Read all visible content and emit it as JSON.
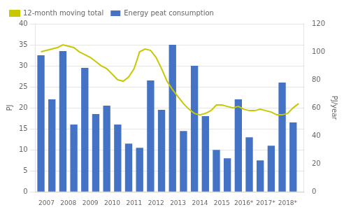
{
  "chart_data": {
    "type": "bar",
    "ylabel": "PJ",
    "y2label": "PJ/year",
    "xlim": [
      2006.5,
      2018.75
    ],
    "xticks": [
      2007,
      2008,
      2009,
      2010,
      2011,
      2012,
      2013,
      2014,
      2015,
      {
        "value": 2016,
        "label": "2016*"
      },
      {
        "value": 2017,
        "label": "2017*"
      },
      {
        "value": 2018,
        "label": "2018*"
      }
    ],
    "ylim": [
      0,
      40
    ],
    "yticks": [
      0,
      5,
      10,
      15,
      20,
      25,
      30,
      35,
      40
    ],
    "y2lim": [
      0,
      120
    ],
    "y2ticks": [
      0,
      20,
      40,
      60,
      80,
      100,
      120
    ],
    "grid": "y",
    "legend": "upper left",
    "series": [
      {
        "name": "Energy peat consumption",
        "type": "bar",
        "color": "#4472c4",
        "x": [
          2006.75,
          2007.25,
          2007.75,
          2008.25,
          2008.75,
          2009.25,
          2009.75,
          2010.25,
          2010.75,
          2011.25,
          2011.75,
          2012.25,
          2012.75,
          2013.25,
          2013.75,
          2014.25,
          2014.75,
          2015.25,
          2015.75,
          2016.25,
          2016.75,
          2017.25,
          2017.75,
          2018.25
        ],
        "values": [
          32.5,
          22.0,
          33.5,
          16.0,
          29.5,
          18.5,
          20.5,
          16.0,
          11.5,
          10.5,
          26.5,
          19.5,
          35.0,
          14.5,
          30.0,
          18.0,
          10.0,
          8.0,
          22.0,
          13.0,
          7.5,
          11.0,
          26.0,
          16.5
        ]
      },
      {
        "name": "12-month moving total",
        "type": "line",
        "color": "#c8c800",
        "axis": "y2",
        "x": [
          2006.75,
          2007.0,
          2007.25,
          2007.5,
          2007.75,
          2008.0,
          2008.25,
          2008.5,
          2008.75,
          2009.0,
          2009.25,
          2009.5,
          2009.75,
          2010.0,
          2010.25,
          2010.5,
          2010.75,
          2011.0,
          2011.25,
          2011.5,
          2011.75,
          2012.0,
          2012.25,
          2012.5,
          2012.75,
          2013.0,
          2013.25,
          2013.5,
          2013.75,
          2014.0,
          2014.25,
          2014.5,
          2014.75,
          2015.0,
          2015.25,
          2015.5,
          2015.75,
          2016.0,
          2016.25,
          2016.5,
          2016.75,
          2017.0,
          2017.25,
          2017.5,
          2017.75,
          2018.0,
          2018.25,
          2018.5
        ],
        "values": [
          100,
          101,
          102,
          103,
          105,
          104,
          103,
          100,
          98,
          96,
          93,
          90,
          88,
          84,
          80,
          79,
          82,
          88,
          100,
          102,
          101,
          96,
          88,
          79,
          73,
          68,
          63,
          59,
          56,
          55,
          56,
          58,
          62,
          62,
          61,
          60,
          61,
          59,
          58,
          58,
          59,
          58,
          57,
          55,
          55,
          56,
          60,
          63
        ]
      }
    ]
  }
}
